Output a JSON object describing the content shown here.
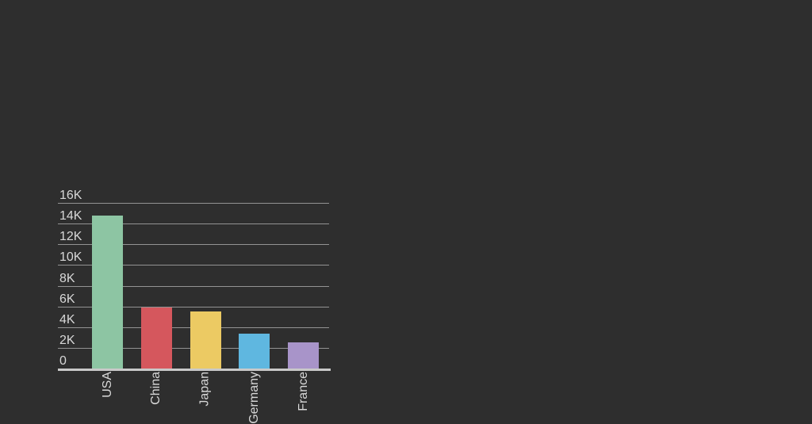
{
  "colors": {
    "background": "#2e2e2e",
    "gridline": "#939393",
    "axis_line": "#c9c9c9",
    "label_text": "#d8d8d8"
  },
  "chart_data": {
    "type": "bar",
    "categories": [
      "USA",
      "China",
      "Japan",
      "Germany",
      "France"
    ],
    "values": [
      14800,
      5900,
      5500,
      3400,
      2550
    ],
    "bar_colors": [
      "#8dc5a3",
      "#d5575d",
      "#ecca63",
      "#5fb7e0",
      "#a894c9"
    ],
    "title": "",
    "xlabel": "",
    "ylabel": "",
    "ylim": [
      0,
      16000
    ],
    "y_tick_step": 2000,
    "y_tick_labels": [
      "0",
      "2K",
      "4K",
      "6K",
      "8K",
      "10K",
      "12K",
      "14K",
      "16K"
    ],
    "grid": true,
    "legend": false,
    "x_label_rotation": -90,
    "x_labels_clipped_by_viewport": [
      "Germany",
      "France"
    ]
  }
}
